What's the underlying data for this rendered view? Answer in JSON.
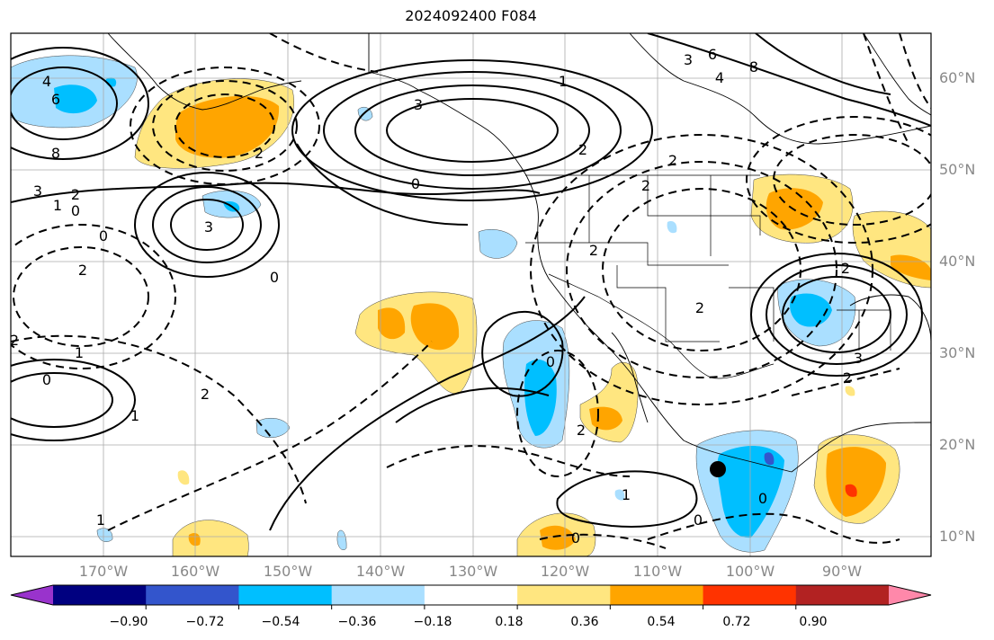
{
  "title": "2024092400 F084",
  "lat_labels": [
    "60°N",
    "50°N",
    "40°N",
    "30°N",
    "20°N",
    "10°N"
  ],
  "lon_labels": [
    "170°W",
    "160°W",
    "150°W",
    "140°W",
    "130°W",
    "120°W",
    "110°W",
    "100°W",
    "90°W"
  ],
  "colorbar": {
    "colors": [
      "#9933cc",
      "#000080",
      "#3355cc",
      "#00bfff",
      "#aadfff",
      "#ffffff",
      "#ffe680",
      "#ffa500",
      "#ff3300",
      "#b22222",
      "#ff88aa"
    ],
    "tick_labels": [
      "−0.90",
      "−0.72",
      "−0.54",
      "−0.36",
      "−0.18",
      "0.18",
      "0.36",
      "0.54",
      "0.72",
      "0.90"
    ]
  },
  "contour_labels": [
    "4",
    "6",
    "8",
    "3",
    "1",
    "0",
    "2",
    "2",
    "0",
    "2",
    "0",
    "1",
    "3",
    "1",
    "2",
    "0",
    "3",
    "6",
    "8",
    "4",
    "2",
    "3",
    "1",
    "2",
    "0",
    "2",
    "2",
    "2",
    "2",
    "3",
    "2",
    "0",
    "2",
    "1",
    "2",
    "0",
    "0",
    "1",
    "0"
  ],
  "marker": "storm-center-dot"
}
